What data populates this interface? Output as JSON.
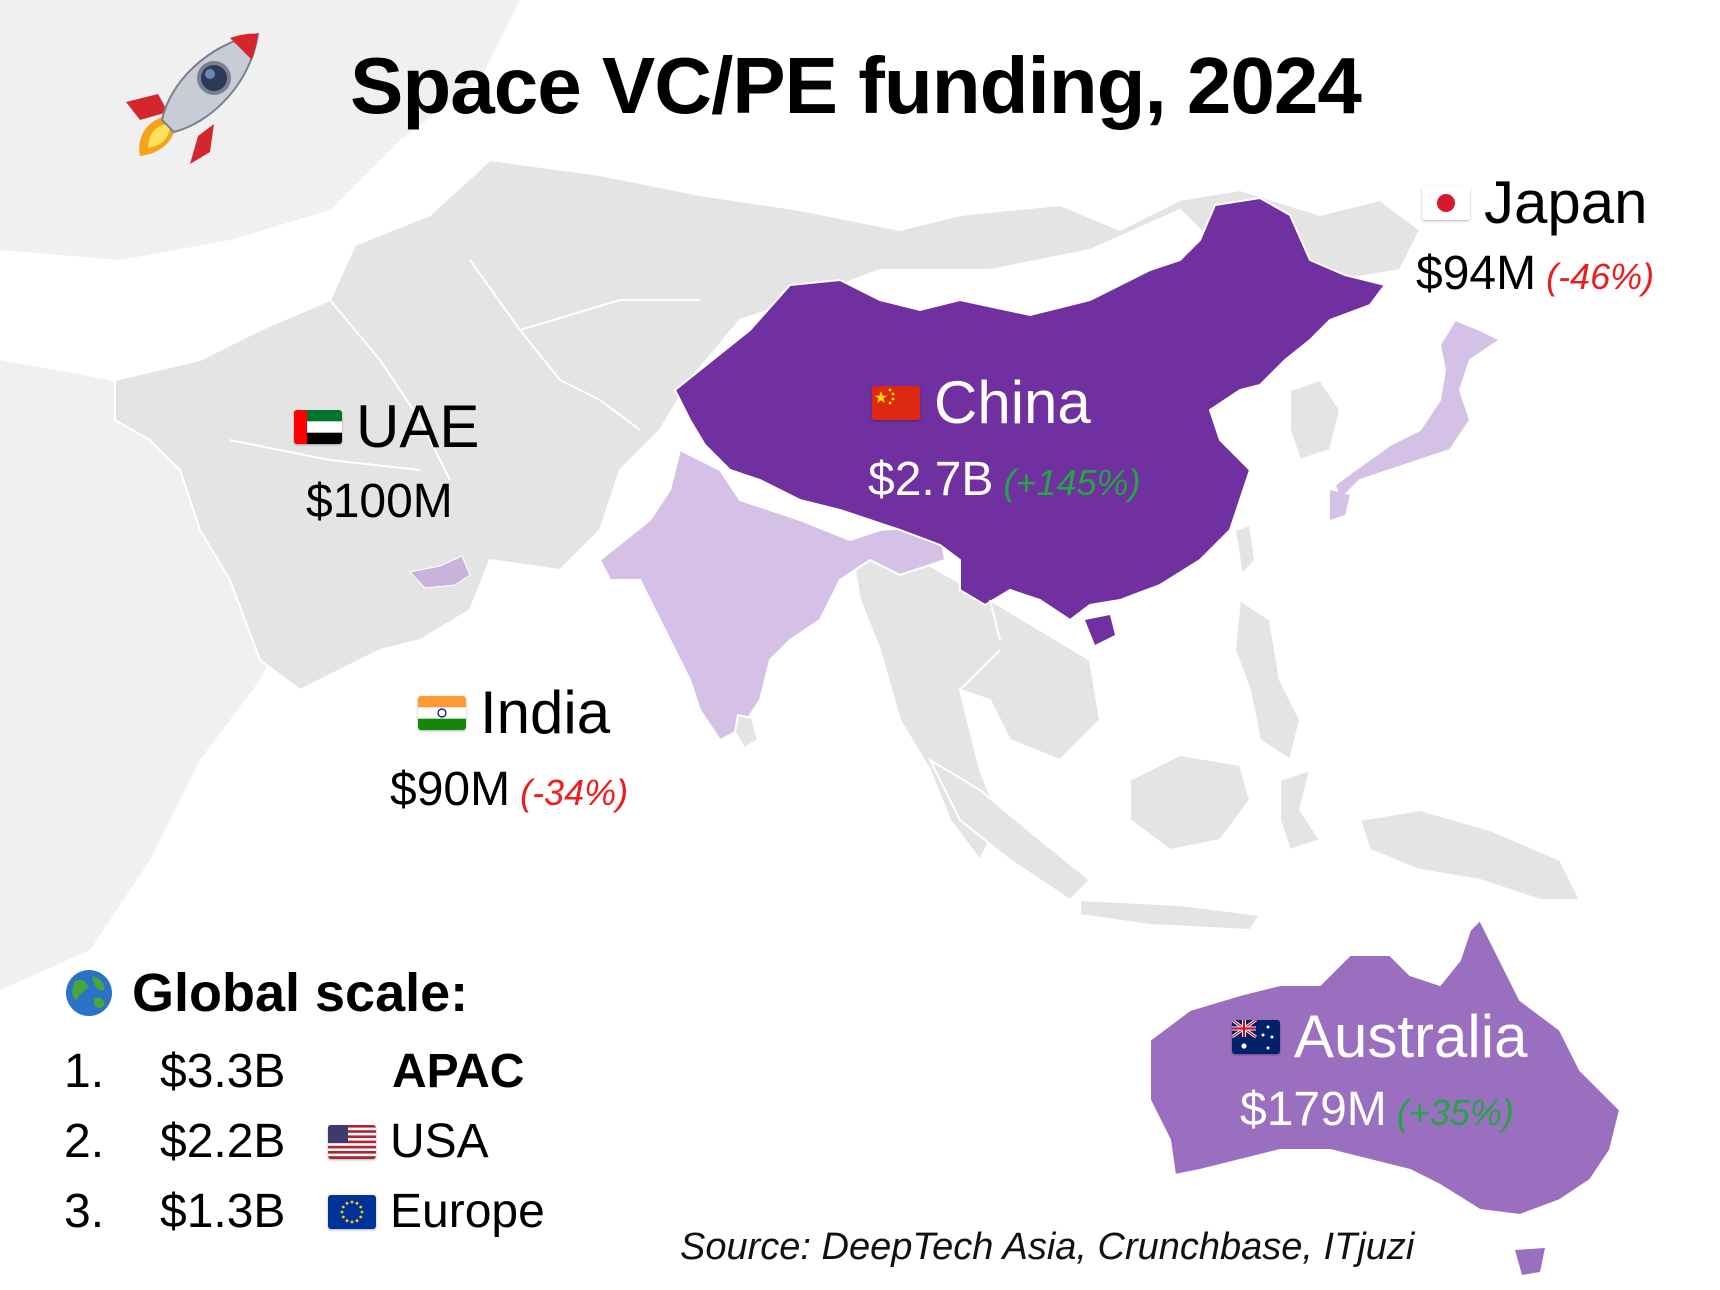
{
  "title": "Space VC/PE funding, 2024",
  "countries": {
    "japan": {
      "name": "Japan",
      "amount": "$94M",
      "change": "(-46%)",
      "trend": "down",
      "flag": "japan-flag-icon"
    },
    "china": {
      "name": "China",
      "amount": "$2.7B",
      "change": "(+145%)",
      "trend": "up",
      "flag": "china-flag-icon"
    },
    "uae": {
      "name": "UAE",
      "amount": "$100M",
      "change": "",
      "trend": "none",
      "flag": "uae-flag-icon"
    },
    "india": {
      "name": "India",
      "amount": "$90M",
      "change": "(-34%)",
      "trend": "down",
      "flag": "india-flag-icon"
    },
    "australia": {
      "name": "Australia",
      "amount": "$179M",
      "change": "(+35%)",
      "trend": "up",
      "flag": "australia-flag-icon"
    }
  },
  "global_scale": {
    "title": "Global scale:",
    "icon": "globe-icon",
    "ranks": [
      {
        "num": "1.",
        "amount": "$3.3B",
        "region": "APAC",
        "flag": ""
      },
      {
        "num": "2.",
        "amount": "$2.2B",
        "region": "USA",
        "flag": "usa-flag-icon"
      },
      {
        "num": "3.",
        "amount": "$1.3B",
        "region": "Europe",
        "flag": "eu-flag-icon"
      }
    ]
  },
  "source": "Source: DeepTech Asia, Crunchbase, ITjuzi",
  "colors": {
    "land": "#e4e4e4",
    "china": "#7030a0",
    "australia": "#9b6fbf",
    "india_japan": "#d6c1e6",
    "uae": "#c9b3dd",
    "negative": "#ee1c1c",
    "positive": "#22a545"
  },
  "icons": {
    "decoration": "rocket-icon"
  }
}
